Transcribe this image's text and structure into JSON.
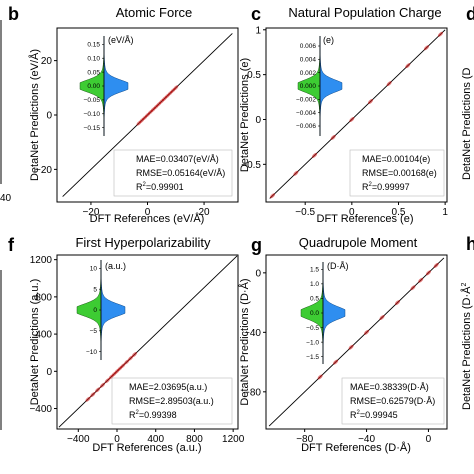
{
  "colors": {
    "scatter": "#cc1111",
    "diagonal": "#000000",
    "violin_left": "#3dcc33",
    "violin_right": "#2e8ef0",
    "axis": "#000000"
  },
  "panels": {
    "b": {
      "letter": "b",
      "title": "Atomic Force",
      "xlabel": "DFT References (eV/Å)",
      "ylabel": "DetaNet Predictions (eV/Å)",
      "inset_unit": "(eV/Å)",
      "stats": [
        "MAE=0.03407(eV/Å)",
        "RMSE=0.05164(eV/Å)"
      ],
      "r2_prefix": "R",
      "r2_sup": "2",
      "r2_value": "=0.99901"
    },
    "c": {
      "letter": "c",
      "title": "Natural Population Charge",
      "xlabel": "DFT References (e)",
      "ylabel": "DetaNet Predictions (e)",
      "inset_unit": "(e)",
      "stats": [
        "MAE=0.00104(e)",
        "RMSE=0.00168(e)"
      ],
      "r2_prefix": "R",
      "r2_sup": "2",
      "r2_value": "=0.99997"
    },
    "f": {
      "letter": "f",
      "title": "First Hyperpolarizability",
      "xlabel": "DFT References (a.u.)",
      "ylabel": "DetaNet Predictions (a.u.)",
      "inset_unit": "(a.u.)",
      "stats": [
        "MAE=2.03695(a.u.)",
        "RMSE=2.89503(a.u.)"
      ],
      "r2_prefix": "R",
      "r2_sup": "2",
      "r2_value": "=0.99398"
    },
    "g": {
      "letter": "g",
      "title": "Quadrupole Moment",
      "xlabel": "DFT References (D·Å)",
      "ylabel": "DetaNet Predictions (D·Å)",
      "inset_unit": "(D·Å)",
      "stats": [
        "MAE=0.38339(D·Å)",
        "RMSE=0.62579(D·Å)"
      ],
      "r2_prefix": "R",
      "r2_sup": "2",
      "r2_value": "=0.99945"
    }
  },
  "edge": {
    "left_tick_top": "40",
    "right_letter_top": "d",
    "right_letter_bottom": "h",
    "right_ylabel_top": "DetaNet Predictions (D",
    "right_ylabel_bottom": "DetaNet Predictions (D·Å",
    "right_ylabel_bottom_sup": "2"
  },
  "chart_data": [
    {
      "panel": "b",
      "type": "scatter",
      "title": "Atomic Force",
      "xlabel": "DFT References (eV/Å)",
      "ylabel": "DetaNet Predictions (eV/Å)",
      "xlim": [
        -32,
        32
      ],
      "ylim": [
        -32,
        32
      ],
      "xticks": [
        -20,
        0,
        20
      ],
      "yticks": [
        -20,
        0,
        20
      ],
      "diagonal": [
        [
          -30,
          -30
        ],
        [
          30,
          30
        ]
      ],
      "points": [
        [
          -3,
          -3
        ],
        [
          -2,
          -2
        ],
        [
          -1,
          -1
        ],
        [
          0,
          0
        ],
        [
          1,
          1
        ],
        [
          2,
          2
        ],
        [
          3,
          3
        ],
        [
          4,
          4
        ],
        [
          5,
          5
        ],
        [
          6,
          6
        ],
        [
          7,
          7
        ],
        [
          8,
          8
        ],
        [
          9,
          9
        ],
        [
          10,
          10
        ]
      ],
      "inset": {
        "type": "violin",
        "unit": "(eV/Å)",
        "yticks": [
          -0.15,
          -0.1,
          -0.05,
          0.0,
          0.05,
          0.1,
          0.15
        ],
        "ylim": [
          -0.18,
          0.18
        ]
      },
      "metrics": {
        "MAE": 0.03407,
        "RMSE": 0.05164,
        "R2": 0.99901
      }
    },
    {
      "panel": "c",
      "type": "scatter",
      "title": "Natural Population Charge",
      "xlabel": "DFT References (e)",
      "ylabel": "DetaNet Predictions (e)",
      "xlim": [
        -0.92,
        1.02
      ],
      "ylim": [
        -0.92,
        1.02
      ],
      "xticks": [
        -0.5,
        0.0,
        0.5,
        1.0
      ],
      "yticks": [
        -0.5,
        0.0,
        0.5,
        1.0
      ],
      "diagonal": [
        [
          -0.88,
          -0.88
        ],
        [
          1.0,
          1.0
        ]
      ],
      "points": [
        [
          -0.85,
          -0.85
        ],
        [
          -0.6,
          -0.6
        ],
        [
          -0.4,
          -0.4
        ],
        [
          -0.2,
          -0.2
        ],
        [
          0.0,
          0.0
        ],
        [
          0.2,
          0.2
        ],
        [
          0.4,
          0.4
        ],
        [
          0.6,
          0.6
        ],
        [
          0.8,
          0.8
        ],
        [
          0.95,
          0.95
        ]
      ],
      "inset": {
        "type": "violin",
        "unit": "(e)",
        "yticks": [
          -0.006,
          -0.004,
          -0.002,
          0.0,
          0.002,
          0.004,
          0.006
        ],
        "ylim": [
          -0.0075,
          0.0075
        ]
      },
      "metrics": {
        "MAE": 0.00104,
        "RMSE": 0.00168,
        "R2": 0.99997
      }
    },
    {
      "panel": "f",
      "type": "scatter",
      "title": "First Hyperpolarizability",
      "xlabel": "DFT References (a.u.)",
      "ylabel": "DetaNet Predictions (a.u.)",
      "xlim": [
        -620,
        1250
      ],
      "ylim": [
        -620,
        1250
      ],
      "xticks": [
        -400,
        0,
        400,
        800,
        1200
      ],
      "yticks": [
        -400,
        0,
        400,
        800,
        1200
      ],
      "diagonal": [
        [
          -600,
          -600
        ],
        [
          1240,
          1240
        ]
      ],
      "points": [
        [
          -300,
          -300
        ],
        [
          -250,
          -250
        ],
        [
          -200,
          -200
        ],
        [
          -150,
          -150
        ],
        [
          -100,
          -100
        ],
        [
          -60,
          -60
        ],
        [
          -30,
          -30
        ],
        [
          0,
          0
        ],
        [
          30,
          30
        ],
        [
          60,
          60
        ],
        [
          100,
          100
        ],
        [
          140,
          140
        ],
        [
          180,
          180
        ]
      ],
      "inset": {
        "type": "violin",
        "unit": "(a.u.)",
        "yticks": [
          -10,
          -5,
          0,
          5,
          10
        ],
        "ylim": [
          -12,
          12
        ]
      },
      "metrics": {
        "MAE": 2.03695,
        "RMSE": 2.89503,
        "R2": 0.99398
      }
    },
    {
      "panel": "g",
      "type": "scatter",
      "title": "Quadrupole Moment",
      "xlabel": "DFT References (D·Å)",
      "ylabel": "DetaNet Predictions (D·Å)",
      "xlim": [
        -105,
        12
      ],
      "ylim": [
        -105,
        12
      ],
      "xticks": [
        -80,
        -40,
        0
      ],
      "yticks": [
        -80,
        -40,
        0
      ],
      "diagonal": [
        [
          -103,
          -103
        ],
        [
          10,
          10
        ]
      ],
      "points": [
        [
          -70,
          -70
        ],
        [
          -60,
          -60
        ],
        [
          -50,
          -50
        ],
        [
          -40,
          -40
        ],
        [
          -30,
          -30
        ],
        [
          -20,
          -20
        ],
        [
          -10,
          -10
        ],
        [
          -5,
          -5
        ],
        [
          0,
          0
        ],
        [
          5,
          5
        ]
      ],
      "inset": {
        "type": "violin",
        "unit": "(D·Å)",
        "yticks": [
          -1.5,
          -1.0,
          -0.5,
          0.0,
          0.5,
          1.0,
          1.5
        ],
        "ylim": [
          -1.75,
          1.75
        ]
      },
      "metrics": {
        "MAE": 0.38339,
        "RMSE": 0.62579,
        "R2": 0.99945
      }
    }
  ]
}
